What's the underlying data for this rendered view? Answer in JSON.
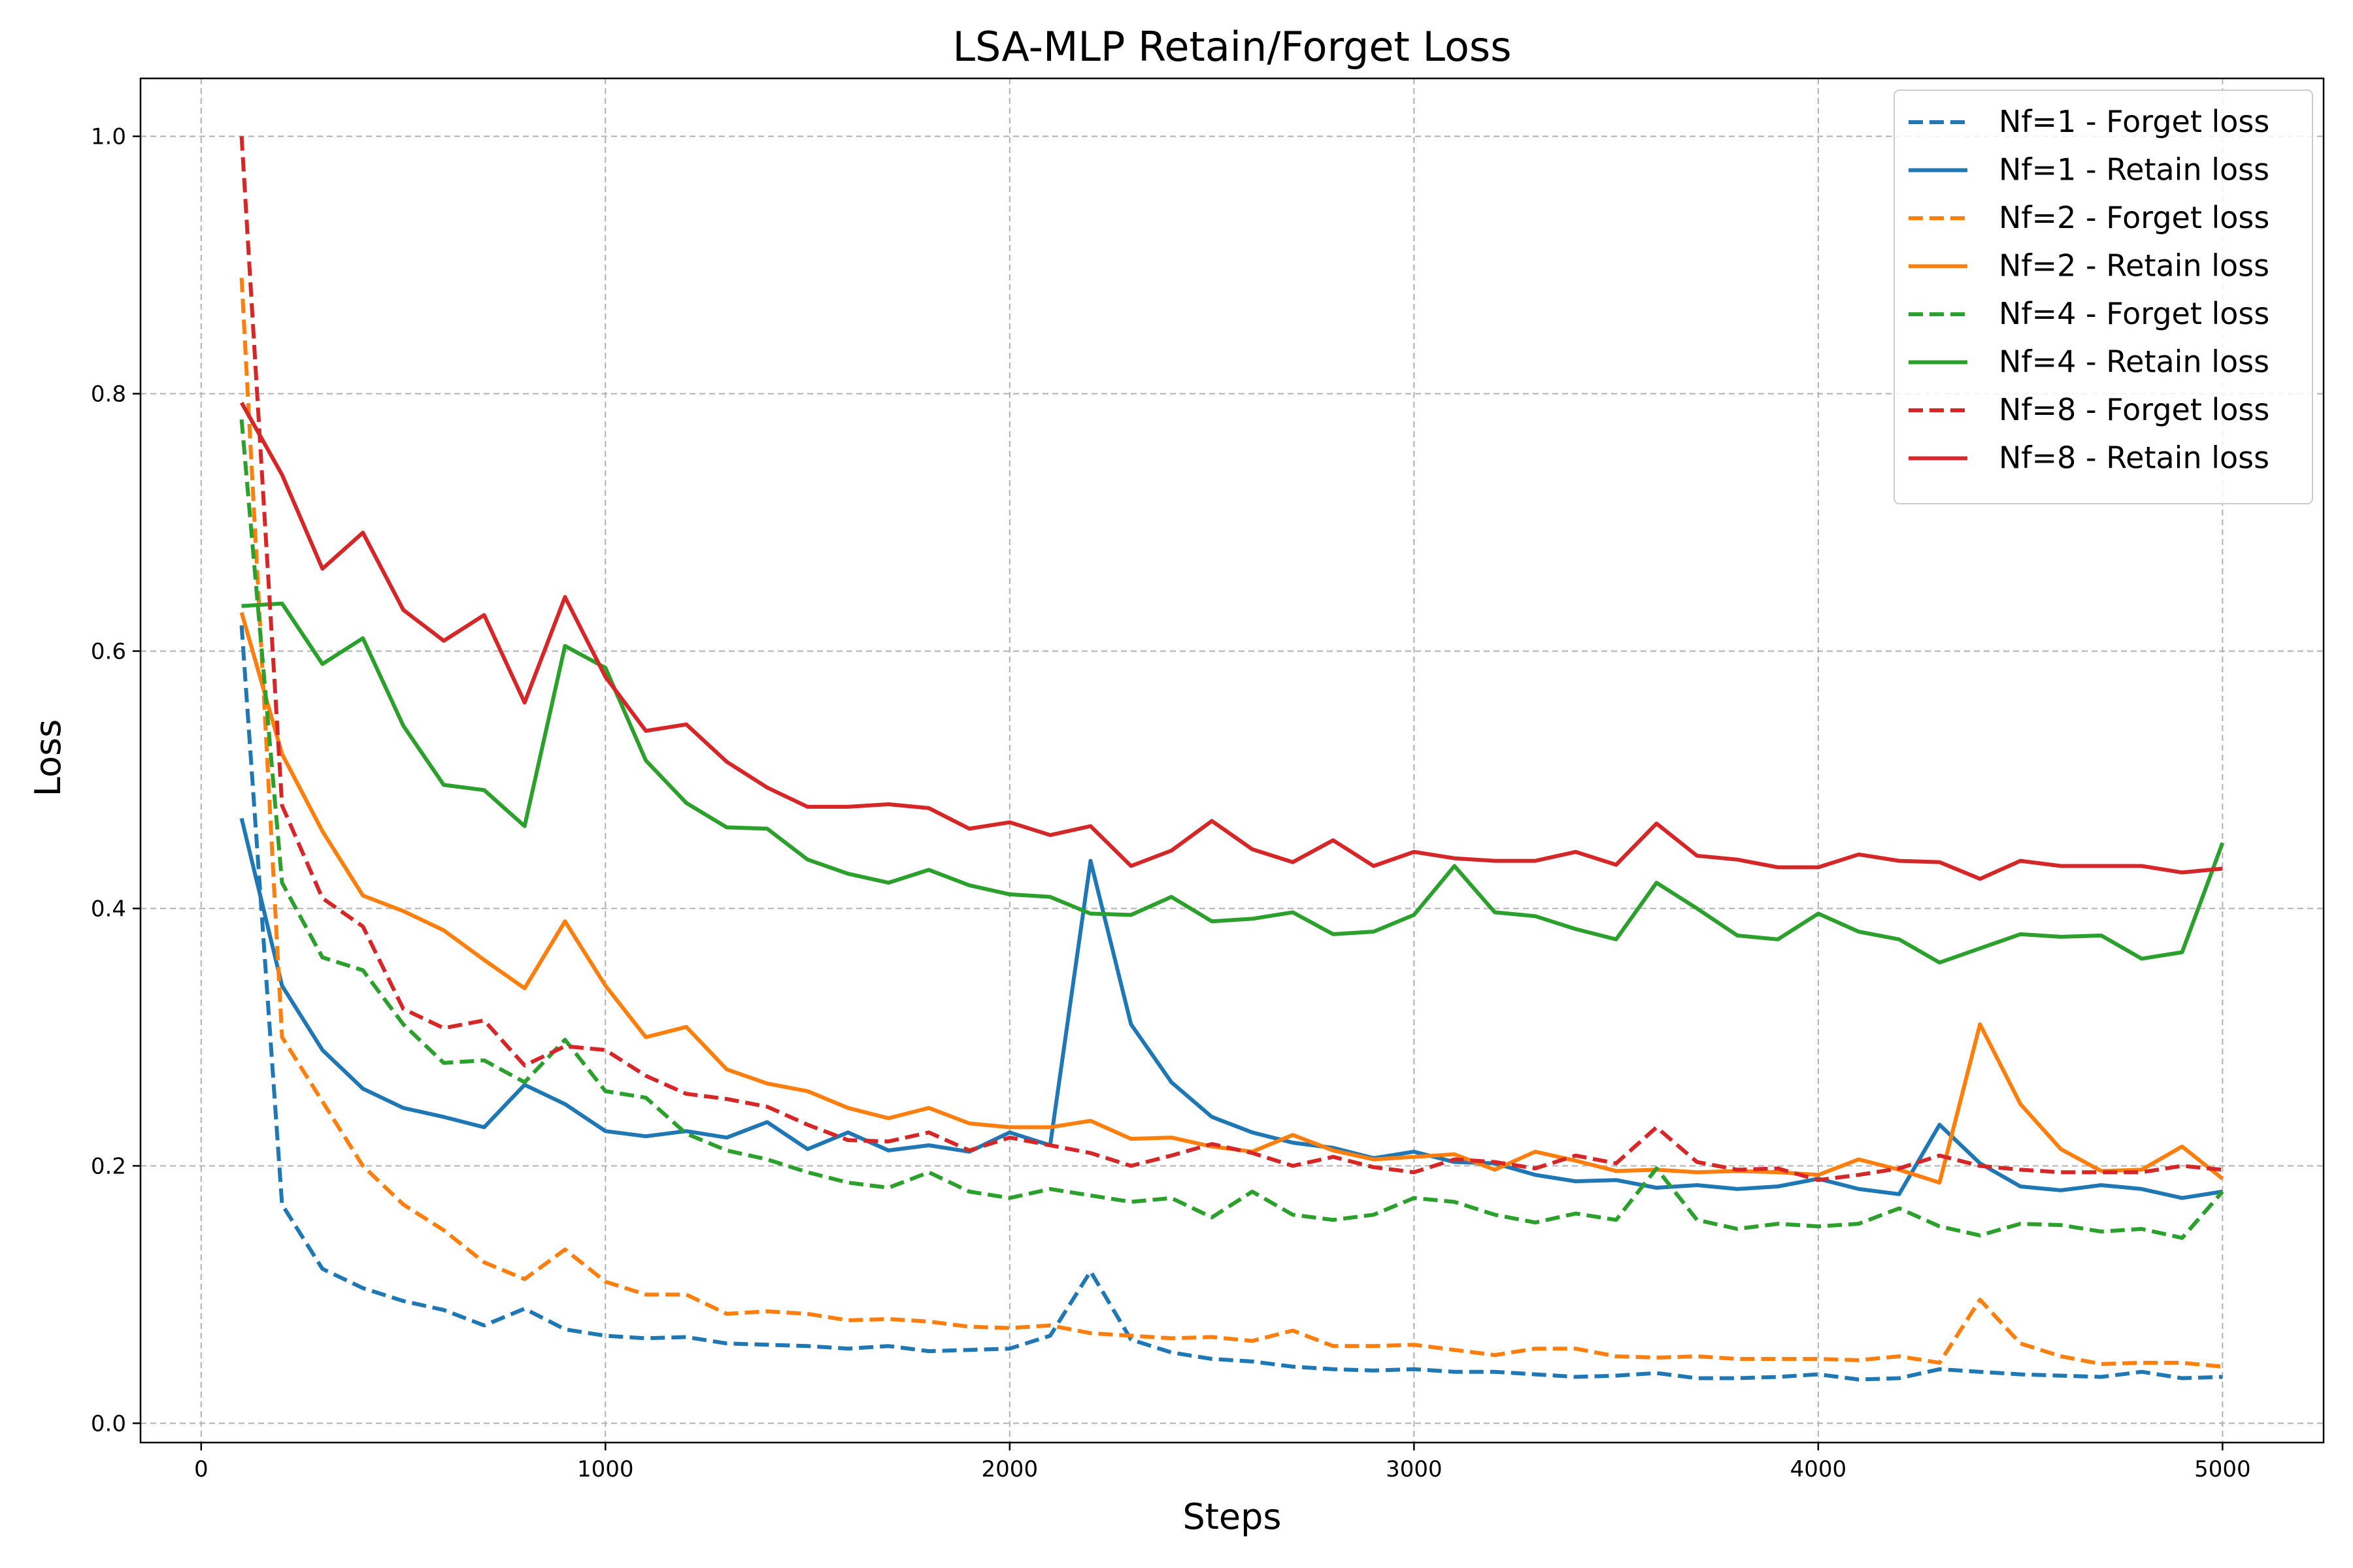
{
  "chart_data": {
    "type": "line",
    "title": "LSA-MLP Retain/Forget Loss",
    "xlabel": "Steps",
    "ylabel": "Loss",
    "xlim": [
      -150,
      5250
    ],
    "ylim": [
      -0.015,
      1.045
    ],
    "xticks": [
      0,
      1000,
      2000,
      3000,
      4000,
      5000
    ],
    "yticks": [
      0.0,
      0.2,
      0.4,
      0.6,
      0.8,
      1.0
    ],
    "xtick_labels": [
      "0",
      "1000",
      "2000",
      "3000",
      "4000",
      "5000"
    ],
    "ytick_labels": [
      "0.0",
      "0.2",
      "0.4",
      "0.6",
      "0.8",
      "1.0"
    ],
    "grid": true,
    "legend_position": "top-right",
    "x": [
      100,
      200,
      300,
      400,
      500,
      600,
      700,
      800,
      900,
      1000,
      1100,
      1200,
      1300,
      1400,
      1500,
      1600,
      1700,
      1800,
      1900,
      2000,
      2100,
      2200,
      2300,
      2400,
      2500,
      2600,
      2700,
      2800,
      2900,
      3000,
      3100,
      3200,
      3300,
      3400,
      3500,
      3600,
      3700,
      3800,
      3900,
      4000,
      4100,
      4200,
      4300,
      4400,
      4500,
      4600,
      4700,
      4800,
      4900,
      5000
    ],
    "series": [
      {
        "name": "Nf=1 - Forget loss",
        "color": "#1f77b4",
        "style": "dashed",
        "values": [
          0.62,
          0.17,
          0.12,
          0.105,
          0.095,
          0.088,
          0.076,
          0.089,
          0.073,
          0.068,
          0.066,
          0.067,
          0.062,
          0.061,
          0.06,
          0.058,
          0.06,
          0.056,
          0.057,
          0.058,
          0.068,
          0.118,
          0.065,
          0.055,
          0.05,
          0.048,
          0.044,
          0.042,
          0.041,
          0.042,
          0.04,
          0.04,
          0.038,
          0.036,
          0.037,
          0.039,
          0.035,
          0.035,
          0.036,
          0.038,
          0.034,
          0.035,
          0.042,
          0.04,
          0.038,
          0.037,
          0.036,
          0.04,
          0.035,
          0.036
        ]
      },
      {
        "name": "Nf=1 - Retain loss",
        "color": "#1f77b4",
        "style": "solid",
        "values": [
          0.47,
          0.34,
          0.29,
          0.26,
          0.245,
          0.238,
          0.23,
          0.263,
          0.248,
          0.227,
          0.223,
          0.227,
          0.222,
          0.234,
          0.213,
          0.226,
          0.212,
          0.216,
          0.211,
          0.226,
          0.216,
          0.437,
          0.31,
          0.265,
          0.238,
          0.226,
          0.218,
          0.214,
          0.206,
          0.211,
          0.203,
          0.202,
          0.193,
          0.188,
          0.189,
          0.183,
          0.185,
          0.182,
          0.184,
          0.19,
          0.182,
          0.178,
          0.232,
          0.202,
          0.184,
          0.181,
          0.185,
          0.182,
          0.175,
          0.18
        ]
      },
      {
        "name": "Nf=2 - Forget loss",
        "color": "#ff7f0e",
        "style": "dashed",
        "values": [
          0.89,
          0.3,
          0.25,
          0.2,
          0.17,
          0.15,
          0.125,
          0.112,
          0.135,
          0.11,
          0.1,
          0.1,
          0.085,
          0.087,
          0.085,
          0.08,
          0.081,
          0.079,
          0.075,
          0.074,
          0.076,
          0.07,
          0.068,
          0.066,
          0.067,
          0.064,
          0.072,
          0.06,
          0.06,
          0.061,
          0.057,
          0.053,
          0.058,
          0.058,
          0.052,
          0.051,
          0.052,
          0.05,
          0.05,
          0.05,
          0.049,
          0.052,
          0.047,
          0.096,
          0.062,
          0.052,
          0.046,
          0.047,
          0.047,
          0.044
        ]
      },
      {
        "name": "Nf=2 - Retain loss",
        "color": "#ff7f0e",
        "style": "solid",
        "values": [
          0.63,
          0.52,
          0.46,
          0.41,
          0.398,
          0.383,
          0.36,
          0.338,
          0.39,
          0.34,
          0.3,
          0.308,
          0.275,
          0.264,
          0.258,
          0.245,
          0.237,
          0.245,
          0.233,
          0.23,
          0.23,
          0.235,
          0.221,
          0.222,
          0.215,
          0.211,
          0.224,
          0.212,
          0.205,
          0.207,
          0.209,
          0.197,
          0.211,
          0.204,
          0.196,
          0.197,
          0.195,
          0.196,
          0.195,
          0.193,
          0.205,
          0.197,
          0.187,
          0.31,
          0.248,
          0.213,
          0.196,
          0.197,
          0.215,
          0.19
        ]
      },
      {
        "name": "Nf=4 - Forget loss",
        "color": "#2ca02c",
        "style": "dashed",
        "values": [
          0.78,
          0.42,
          0.362,
          0.352,
          0.31,
          0.28,
          0.282,
          0.265,
          0.298,
          0.258,
          0.253,
          0.225,
          0.212,
          0.205,
          0.195,
          0.187,
          0.183,
          0.195,
          0.18,
          0.175,
          0.182,
          0.177,
          0.172,
          0.175,
          0.16,
          0.18,
          0.162,
          0.158,
          0.162,
          0.175,
          0.172,
          0.162,
          0.156,
          0.163,
          0.158,
          0.198,
          0.158,
          0.151,
          0.155,
          0.153,
          0.155,
          0.167,
          0.153,
          0.146,
          0.155,
          0.154,
          0.149,
          0.151,
          0.144,
          0.18
        ]
      },
      {
        "name": "Nf=4 - Retain loss",
        "color": "#2ca02c",
        "style": "solid",
        "values": [
          0.635,
          0.637,
          0.59,
          0.61,
          0.542,
          0.496,
          0.492,
          0.464,
          0.604,
          0.587,
          0.515,
          0.482,
          0.463,
          0.462,
          0.438,
          0.427,
          0.42,
          0.43,
          0.418,
          0.411,
          0.409,
          0.396,
          0.395,
          0.409,
          0.39,
          0.392,
          0.397,
          0.38,
          0.382,
          0.395,
          0.433,
          0.397,
          0.394,
          0.384,
          0.376,
          0.42,
          0.4,
          0.379,
          0.376,
          0.396,
          0.382,
          0.376,
          0.358,
          0.369,
          0.38,
          0.378,
          0.379,
          0.361,
          0.366,
          0.451
        ]
      },
      {
        "name": "Nf=8 - Forget loss",
        "color": "#d62728",
        "style": "dashed",
        "values": [
          1.0,
          0.48,
          0.408,
          0.386,
          0.322,
          0.307,
          0.313,
          0.278,
          0.293,
          0.29,
          0.27,
          0.256,
          0.252,
          0.246,
          0.232,
          0.22,
          0.219,
          0.226,
          0.212,
          0.222,
          0.216,
          0.21,
          0.2,
          0.208,
          0.217,
          0.21,
          0.2,
          0.207,
          0.199,
          0.195,
          0.205,
          0.203,
          0.198,
          0.208,
          0.202,
          0.23,
          0.203,
          0.197,
          0.198,
          0.189,
          0.193,
          0.198,
          0.208,
          0.2,
          0.197,
          0.195,
          0.195,
          0.195,
          0.2,
          0.197
        ]
      },
      {
        "name": "Nf=8 - Retain loss",
        "color": "#d62728",
        "style": "solid",
        "values": [
          0.793,
          0.737,
          0.664,
          0.692,
          0.632,
          0.608,
          0.628,
          0.56,
          0.642,
          0.58,
          0.538,
          0.543,
          0.514,
          0.494,
          0.479,
          0.479,
          0.481,
          0.478,
          0.462,
          0.467,
          0.457,
          0.464,
          0.433,
          0.445,
          0.468,
          0.446,
          0.436,
          0.453,
          0.433,
          0.444,
          0.439,
          0.437,
          0.437,
          0.444,
          0.434,
          0.466,
          0.441,
          0.438,
          0.432,
          0.432,
          0.442,
          0.437,
          0.436,
          0.423,
          0.437,
          0.433,
          0.433,
          0.433,
          0.428,
          0.431
        ]
      }
    ]
  }
}
